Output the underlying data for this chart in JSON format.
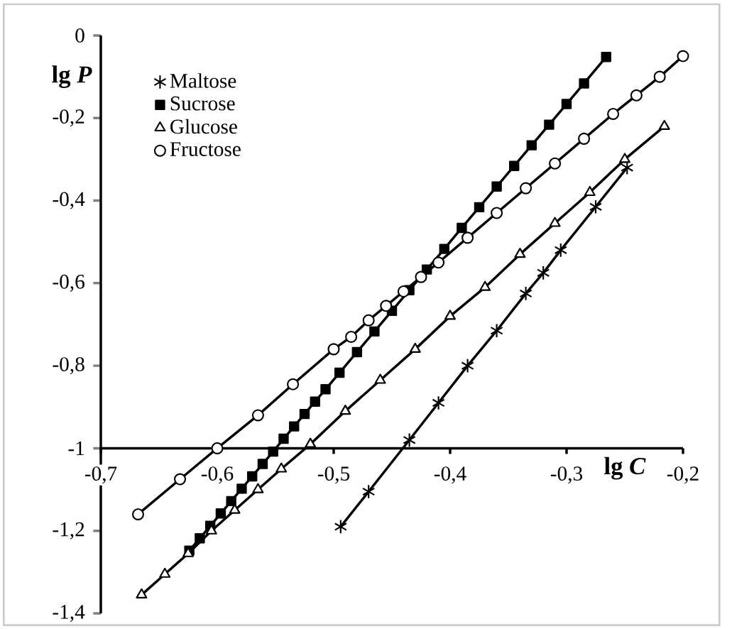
{
  "chart_data": {
    "type": "line",
    "xlabel": "lg *C*",
    "ylabel": "lg *P*",
    "xlim": [
      -0.7,
      -0.2
    ],
    "ylim": [
      -1.4,
      0
    ],
    "xticks": [
      {
        "value": -0.7,
        "label": "-0,7"
      },
      {
        "value": -0.6,
        "label": "-0,6"
      },
      {
        "value": -0.5,
        "label": "-0,5"
      },
      {
        "value": -0.4,
        "label": "-0,4"
      },
      {
        "value": -0.3,
        "label": "-0,3"
      },
      {
        "value": -0.2,
        "label": "-0,2"
      }
    ],
    "yticks": [
      0,
      {
        "value": -0.2,
        "label": "-0,2"
      },
      {
        "value": -0.4,
        "label": "-0,4"
      },
      {
        "value": -0.6,
        "label": "-0,6"
      },
      {
        "value": -0.8,
        "label": "-0,8"
      },
      -1,
      {
        "value": -1.2,
        "label": "-1,2"
      },
      {
        "value": -1.4,
        "label": "-1,4"
      }
    ],
    "legend": "top left",
    "grid": false,
    "line_style": "solid",
    "series": [
      {
        "name": "Maltose",
        "color": "#000000",
        "marker": "cross",
        "x": [
          -0.494,
          -0.47,
          -0.435,
          -0.41,
          -0.385,
          -0.36,
          -0.335,
          -0.32,
          -0.305,
          -0.275,
          -0.248
        ],
        "values": [
          -1.19,
          -1.105,
          -0.98,
          -0.89,
          -0.8,
          -0.715,
          -0.625,
          -0.575,
          -0.52,
          -0.415,
          -0.32
        ]
      },
      {
        "name": "Sucrose",
        "color": "#000000",
        "marker": "square",
        "x": [
          -0.624,
          -0.615,
          -0.606,
          -0.597,
          -0.588,
          -0.579,
          -0.57,
          -0.561,
          -0.552,
          -0.543,
          -0.534,
          -0.525,
          -0.516,
          -0.507,
          -0.495,
          -0.48,
          -0.465,
          -0.45,
          -0.435,
          -0.42,
          -0.405,
          -0.39,
          -0.375,
          -0.36,
          -0.345,
          -0.33,
          -0.315,
          -0.3,
          -0.285,
          -0.266
        ],
        "values": [
          -1.248,
          -1.218,
          -1.188,
          -1.158,
          -1.128,
          -1.098,
          -1.068,
          -1.038,
          -1.008,
          -0.977,
          -0.947,
          -0.917,
          -0.887,
          -0.857,
          -0.817,
          -0.767,
          -0.717,
          -0.667,
          -0.617,
          -0.567,
          -0.517,
          -0.466,
          -0.416,
          -0.366,
          -0.316,
          -0.266,
          -0.216,
          -0.166,
          -0.116,
          -0.052
        ]
      },
      {
        "name": "Glucose",
        "color": "#000000",
        "marker": "triangle",
        "x": [
          -0.665,
          -0.645,
          -0.625,
          -0.605,
          -0.585,
          -0.565,
          -0.545,
          -0.52,
          -0.49,
          -0.46,
          -0.43,
          -0.4,
          -0.37,
          -0.34,
          -0.31,
          -0.28,
          -0.25,
          -0.216
        ],
        "values": [
          -1.355,
          -1.305,
          -1.255,
          -1.2,
          -1.15,
          -1.1,
          -1.05,
          -0.99,
          -0.91,
          -0.835,
          -0.76,
          -0.68,
          -0.61,
          -0.53,
          -0.455,
          -0.38,
          -0.3,
          -0.22
        ]
      },
      {
        "name": "Fructose",
        "color": "#000000",
        "marker": "circle",
        "x": [
          -0.668,
          -0.632,
          -0.6,
          -0.565,
          -0.535,
          -0.5,
          -0.485,
          -0.47,
          -0.455,
          -0.44,
          -0.425,
          -0.41,
          -0.385,
          -0.36,
          -0.335,
          -0.31,
          -0.285,
          -0.26,
          -0.24,
          -0.22,
          -0.2
        ],
        "values": [
          -1.16,
          -1.075,
          -1.0,
          -0.92,
          -0.845,
          -0.76,
          -0.73,
          -0.69,
          -0.655,
          -0.62,
          -0.585,
          -0.55,
          -0.49,
          -0.43,
          -0.37,
          -0.31,
          -0.25,
          -0.19,
          -0.145,
          -0.1,
          -0.05
        ]
      }
    ]
  }
}
